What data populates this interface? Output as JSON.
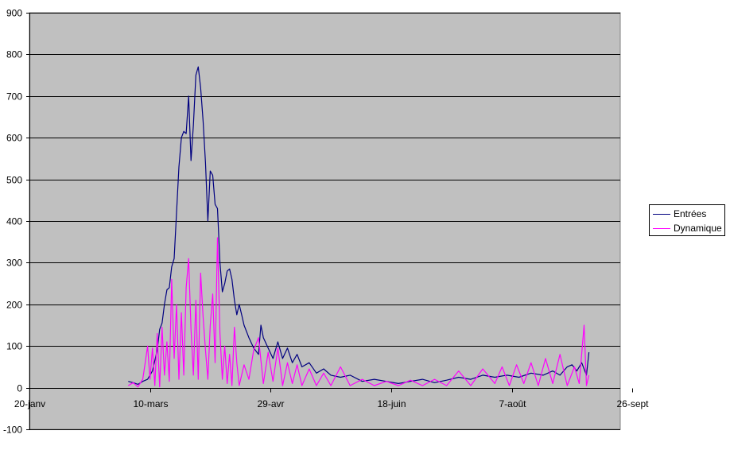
{
  "chart_data": {
    "type": "line",
    "title": "",
    "xlabel": "",
    "ylabel": "",
    "x_axis": {
      "start": "20-janv",
      "end": "26-sept",
      "ticks": [
        "20-janv",
        "10-mars",
        "29-avr",
        "18-juin",
        "7-août",
        "26-sept"
      ],
      "span_days": 245
    },
    "y_axis": {
      "ylim": [
        -100,
        900
      ],
      "ticks": [
        -100,
        0,
        100,
        200,
        300,
        400,
        500,
        600,
        700,
        800,
        900
      ]
    },
    "grid": "horizontal",
    "plot_background": "#c0c0c0",
    "legend_position": "right",
    "series": [
      {
        "name": "Entrées",
        "color": "#000080",
        "points": [
          [
            "1-mars",
            15
          ],
          [
            "3-mars",
            12
          ],
          [
            "5-mars",
            8
          ],
          [
            "7-mars",
            15
          ],
          [
            "9-mars",
            20
          ],
          [
            "11-mars",
            40
          ],
          [
            "13-mars",
            90
          ],
          [
            "14-mars",
            140
          ],
          [
            "15-mars",
            155
          ],
          [
            "16-mars",
            200
          ],
          [
            "17-mars",
            235
          ],
          [
            "18-mars",
            240
          ],
          [
            "19-mars",
            290
          ],
          [
            "20-mars",
            310
          ],
          [
            "21-mars",
            420
          ],
          [
            "22-mars",
            530
          ],
          [
            "23-mars",
            600
          ],
          [
            "24-mars",
            615
          ],
          [
            "25-mars",
            610
          ],
          [
            "26-mars",
            700
          ],
          [
            "27-mars",
            545
          ],
          [
            "28-mars",
            630
          ],
          [
            "29-mars",
            750
          ],
          [
            "30-mars",
            770
          ],
          [
            "31-mars",
            720
          ],
          [
            "1-avr",
            640
          ],
          [
            "2-avr",
            540
          ],
          [
            "3-avr",
            400
          ],
          [
            "4-avr",
            520
          ],
          [
            "5-avr",
            510
          ],
          [
            "6-avr",
            440
          ],
          [
            "7-avr",
            430
          ],
          [
            "8-avr",
            300
          ],
          [
            "9-avr",
            230
          ],
          [
            "10-avr",
            250
          ],
          [
            "11-avr",
            280
          ],
          [
            "12-avr",
            285
          ],
          [
            "13-avr",
            260
          ],
          [
            "14-avr",
            210
          ],
          [
            "15-avr",
            175
          ],
          [
            "16-avr",
            200
          ],
          [
            "17-avr",
            175
          ],
          [
            "18-avr",
            150
          ],
          [
            "20-avr",
            120
          ],
          [
            "22-avr",
            95
          ],
          [
            "24-avr",
            80
          ],
          [
            "25-avr",
            150
          ],
          [
            "26-avr",
            120
          ],
          [
            "28-avr",
            95
          ],
          [
            "30-avr",
            70
          ],
          [
            "2-mai",
            110
          ],
          [
            "4-mai",
            70
          ],
          [
            "6-mai",
            95
          ],
          [
            "8-mai",
            60
          ],
          [
            "10-mai",
            80
          ],
          [
            "12-mai",
            50
          ],
          [
            "15-mai",
            60
          ],
          [
            "18-mai",
            35
          ],
          [
            "21-mai",
            45
          ],
          [
            "24-mai",
            30
          ],
          [
            "28-mai",
            25
          ],
          [
            "1-juin",
            30
          ],
          [
            "6-juin",
            15
          ],
          [
            "11-juin",
            20
          ],
          [
            "16-juin",
            15
          ],
          [
            "21-juin",
            10
          ],
          [
            "26-juin",
            15
          ],
          [
            "1-juil",
            20
          ],
          [
            "6-juil",
            12
          ],
          [
            "11-juil",
            18
          ],
          [
            "16-juil",
            25
          ],
          [
            "21-juil",
            20
          ],
          [
            "26-juil",
            30
          ],
          [
            "31-juil",
            25
          ],
          [
            "5-août",
            30
          ],
          [
            "10-août",
            25
          ],
          [
            "15-août",
            35
          ],
          [
            "20-août",
            30
          ],
          [
            "24-août",
            40
          ],
          [
            "27-août",
            30
          ],
          [
            "30-août",
            50
          ],
          [
            "1-sept",
            55
          ],
          [
            "3-sept",
            40
          ],
          [
            "5-sept",
            60
          ],
          [
            "7-sept",
            30
          ],
          [
            "8-sept",
            85
          ]
        ]
      },
      {
        "name": "Dynamique",
        "color": "#ff00ff",
        "points": [
          [
            "1-mars",
            5
          ],
          [
            "3-mars",
            12
          ],
          [
            "5-mars",
            2
          ],
          [
            "7-mars",
            20
          ],
          [
            "8-mars",
            60
          ],
          [
            "9-mars",
            100
          ],
          [
            "10-mars",
            20
          ],
          [
            "11-mars",
            95
          ],
          [
            "12-mars",
            5
          ],
          [
            "13-mars",
            130
          ],
          [
            "14-mars",
            2
          ],
          [
            "15-mars",
            145
          ],
          [
            "16-mars",
            30
          ],
          [
            "17-mars",
            110
          ],
          [
            "18-mars",
            15
          ],
          [
            "19-mars",
            260
          ],
          [
            "20-mars",
            70
          ],
          [
            "21-mars",
            200
          ],
          [
            "22-mars",
            20
          ],
          [
            "23-mars",
            180
          ],
          [
            "24-mars",
            30
          ],
          [
            "25-mars",
            240
          ],
          [
            "26-mars",
            310
          ],
          [
            "27-mars",
            140
          ],
          [
            "28-mars",
            30
          ],
          [
            "29-mars",
            210
          ],
          [
            "30-mars",
            20
          ],
          [
            "31-mars",
            275
          ],
          [
            "1-avr",
            170
          ],
          [
            "2-avr",
            90
          ],
          [
            "3-avr",
            20
          ],
          [
            "4-avr",
            150
          ],
          [
            "5-avr",
            225
          ],
          [
            "6-avr",
            60
          ],
          [
            "7-avr",
            360
          ],
          [
            "8-avr",
            130
          ],
          [
            "9-avr",
            20
          ],
          [
            "10-avr",
            100
          ],
          [
            "11-avr",
            10
          ],
          [
            "12-avr",
            80
          ],
          [
            "13-avr",
            5
          ],
          [
            "14-avr",
            145
          ],
          [
            "15-avr",
            60
          ],
          [
            "16-avr",
            5
          ],
          [
            "18-avr",
            55
          ],
          [
            "20-avr",
            20
          ],
          [
            "22-avr",
            90
          ],
          [
            "24-avr",
            120
          ],
          [
            "26-avr",
            10
          ],
          [
            "28-avr",
            85
          ],
          [
            "30-avr",
            15
          ],
          [
            "2-mai",
            95
          ],
          [
            "4-mai",
            5
          ],
          [
            "6-mai",
            60
          ],
          [
            "8-mai",
            10
          ],
          [
            "10-mai",
            55
          ],
          [
            "12-mai",
            5
          ],
          [
            "15-mai",
            45
          ],
          [
            "18-mai",
            5
          ],
          [
            "21-mai",
            35
          ],
          [
            "24-mai",
            5
          ],
          [
            "28-mai",
            50
          ],
          [
            "1-juin",
            5
          ],
          [
            "6-juin",
            20
          ],
          [
            "11-juin",
            5
          ],
          [
            "16-juin",
            15
          ],
          [
            "21-juin",
            5
          ],
          [
            "26-juin",
            18
          ],
          [
            "1-juil",
            5
          ],
          [
            "6-juil",
            20
          ],
          [
            "11-juil",
            5
          ],
          [
            "16-juil",
            40
          ],
          [
            "21-juil",
            5
          ],
          [
            "26-juil",
            45
          ],
          [
            "31-juil",
            10
          ],
          [
            "3-août",
            50
          ],
          [
            "6-août",
            5
          ],
          [
            "9-août",
            55
          ],
          [
            "12-août",
            10
          ],
          [
            "15-août",
            60
          ],
          [
            "18-août",
            5
          ],
          [
            "21-août",
            70
          ],
          [
            "24-août",
            10
          ],
          [
            "27-août",
            80
          ],
          [
            "30-août",
            5
          ],
          [
            "2-sept",
            50
          ],
          [
            "4-sept",
            10
          ],
          [
            "6-sept",
            150
          ],
          [
            "7-sept",
            5
          ],
          [
            "8-sept",
            30
          ]
        ]
      }
    ]
  }
}
